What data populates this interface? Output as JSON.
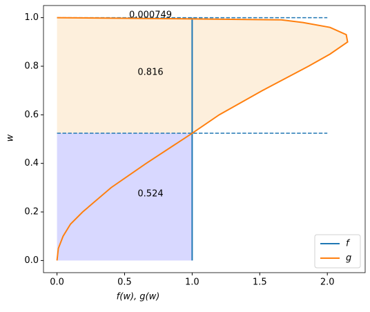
{
  "chart_data": {
    "type": "line",
    "xlabel": "f(w), g(w)",
    "ylabel": "w",
    "xlim": [
      -0.1,
      2.28
    ],
    "ylim": [
      -0.05,
      1.05
    ],
    "xticks": [
      {
        "value": 0,
        "label": "0.0"
      },
      0.5,
      {
        "value": 1,
        "label": "1.0"
      },
      1.5,
      {
        "value": 2,
        "label": "2.0"
      }
    ],
    "yticks": [
      {
        "value": 0,
        "label": "0.0"
      },
      0.2,
      0.4,
      0.6,
      0.8,
      {
        "value": 1,
        "label": "1.0"
      }
    ],
    "series": [
      {
        "name": "f",
        "color": "#1f77b4",
        "x": [
          1,
          1
        ],
        "y": [
          0,
          1
        ]
      },
      {
        "name": "g",
        "color": "#ff7f0e",
        "x": [
          0,
          0.01,
          0.045,
          0.1,
          0.19,
          0.4,
          0.66,
          1.0,
          1.2,
          1.52,
          1.86,
          2.02,
          2.15,
          2.14,
          2.02,
          1.82,
          1.66,
          0.8,
          0
        ],
        "y": [
          0,
          0.05,
          0.1,
          0.15,
          0.2,
          0.3,
          0.4,
          0.524,
          0.6,
          0.7,
          0.8,
          0.85,
          0.9,
          0.93,
          0.96,
          0.98,
          0.991,
          0.996,
          1.0
        ]
      }
    ],
    "hlines": {
      "y": [
        0.524,
        1.0
      ],
      "xmin": 0,
      "xmax": 2,
      "color": "#1f77b4"
    },
    "fill_colors": [
      "#d8d8ff",
      "#fdefdc"
    ],
    "annotations": [
      0.000749,
      0.816,
      0.524
    ],
    "legend": "lower right"
  }
}
